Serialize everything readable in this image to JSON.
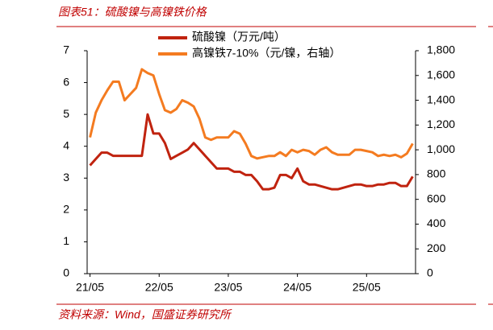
{
  "chart_data": {
    "type": "line",
    "title": "图表51：硫酸镍与高镍铁价格",
    "source": "资料来源：Wind，国盛证券研究所",
    "categories": [
      "21/05",
      null,
      null,
      null,
      null,
      null,
      null,
      null,
      null,
      null,
      null,
      null,
      "22/05",
      null,
      null,
      null,
      null,
      null,
      null,
      null,
      null,
      null,
      null,
      null,
      "23/05",
      null,
      null,
      null,
      null,
      null,
      null,
      null,
      null,
      null,
      null,
      null,
      "24/05",
      null,
      null,
      null,
      null,
      null,
      null,
      null,
      null,
      null,
      null,
      null,
      "25/05",
      null,
      null,
      null,
      null,
      null,
      null,
      null,
      null
    ],
    "series": [
      {
        "name": "硫酸镍（万元/吨）",
        "color": "#c0230f",
        "axis": "y",
        "values": [
          3.4,
          3.6,
          3.8,
          3.8,
          3.7,
          3.7,
          3.7,
          3.7,
          3.7,
          3.7,
          5.0,
          4.4,
          4.4,
          4.1,
          3.6,
          3.7,
          3.8,
          3.9,
          4.1,
          3.9,
          3.7,
          3.5,
          3.3,
          3.3,
          3.3,
          3.2,
          3.2,
          3.1,
          3.1,
          2.9,
          2.65,
          2.65,
          2.7,
          3.1,
          3.1,
          3.0,
          3.3,
          2.9,
          2.8,
          2.8,
          2.75,
          2.7,
          2.65,
          2.65,
          2.7,
          2.75,
          2.8,
          2.8,
          2.75,
          2.75,
          2.8,
          2.8,
          2.85,
          2.85,
          2.75,
          2.75,
          3.05
        ]
      },
      {
        "name": "高镍铁7-10%（元/镍，右轴）",
        "color": "#f47b20",
        "axis": "y2",
        "values": [
          1100,
          1300,
          1400,
          1480,
          1550,
          1550,
          1400,
          1450,
          1500,
          1650,
          1620,
          1600,
          1450,
          1320,
          1300,
          1330,
          1400,
          1380,
          1350,
          1250,
          1100,
          1080,
          1100,
          1100,
          1100,
          1150,
          1130,
          1050,
          950,
          930,
          940,
          950,
          950,
          980,
          950,
          1000,
          980,
          1000,
          990,
          960,
          1000,
          1020,
          980,
          960,
          960,
          960,
          1000,
          1000,
          990,
          980,
          950,
          960,
          950,
          960,
          940,
          970,
          1050
        ]
      }
    ],
    "ylim": [
      0,
      7
    ],
    "yticks": [
      0,
      1,
      2,
      3,
      4,
      5,
      6,
      7
    ],
    "y2lim": [
      0,
      1800
    ],
    "y2ticks": [
      0,
      200,
      400,
      600,
      {
        "value": 800,
        "label": "800"
      },
      {
        "value": 1000,
        "label": "1,000"
      },
      {
        "value": 1200,
        "label": "1,200"
      },
      {
        "value": 1400,
        "label": "1,400"
      },
      {
        "value": 1600,
        "label": "1,600"
      },
      {
        "value": 1800,
        "label": "1,800"
      }
    ]
  }
}
